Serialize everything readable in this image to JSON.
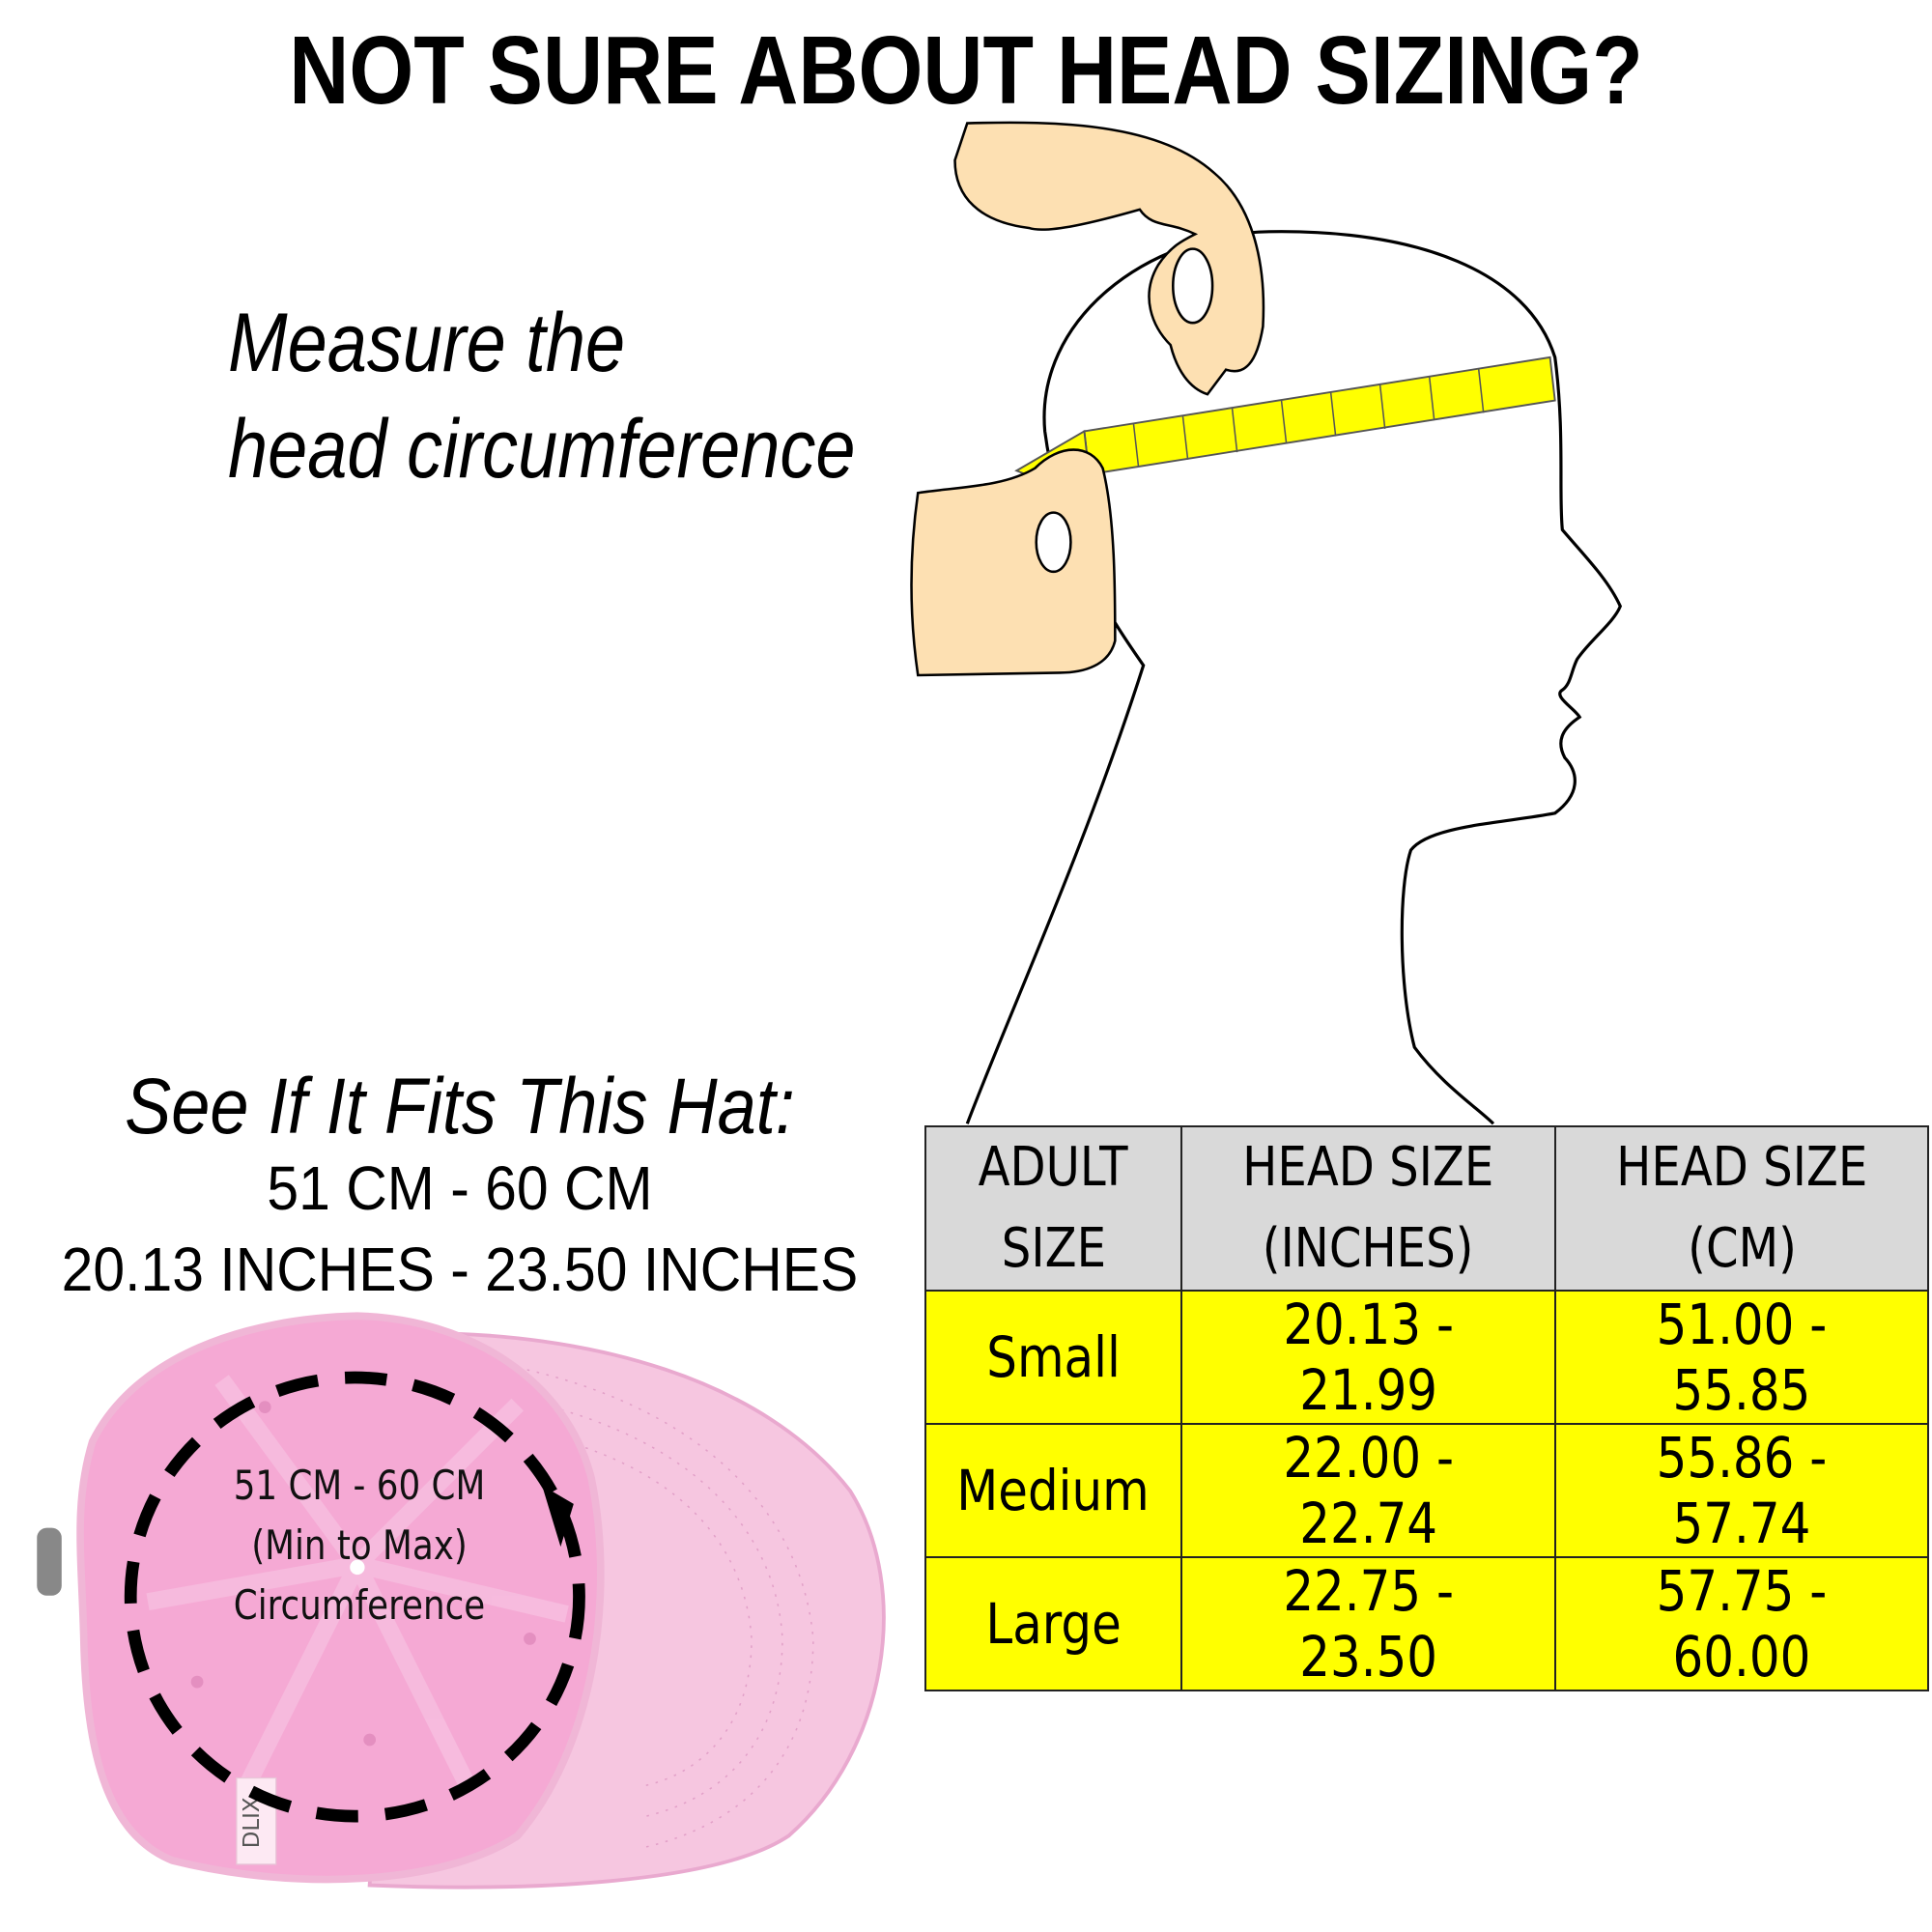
{
  "title": "NOT SURE ABOUT HEAD SIZING?",
  "instruction": {
    "line1": "Measure the",
    "line2": "head circumference"
  },
  "fit": {
    "heading": "See If It Fits This Hat:",
    "cm_range": "51 CM - 60 CM",
    "inch_range": "20.13 INCHES -  23.50 INCHES"
  },
  "hat_label": {
    "line1": "51 CM - 60 CM",
    "line2": "(Min to Max)",
    "line3": "Circumference",
    "tag_text": "DLIX"
  },
  "table": {
    "headers": [
      {
        "line1": "ADULT",
        "line2": "SIZE"
      },
      {
        "line1": "HEAD SIZE",
        "line2": "(INCHES)"
      },
      {
        "line1": "HEAD SIZE",
        "line2": "(CM)"
      }
    ],
    "rows": [
      {
        "size": "Small",
        "inches": "20.13 - 21.99",
        "cm": "51.00 - 55.85"
      },
      {
        "size": "Medium",
        "inches": "22.00 - 22.74",
        "cm": "55.86 - 57.74"
      },
      {
        "size": "Large",
        "inches": "22.75 - 23.50",
        "cm": "57.75 - 60.00"
      }
    ],
    "header_bg": "#d9d9d9",
    "row_bg": "#ffff00"
  },
  "colors": {
    "skin": "#fde0b2",
    "tape": "#ffff00",
    "hat_pink": "#f5b8dc"
  }
}
